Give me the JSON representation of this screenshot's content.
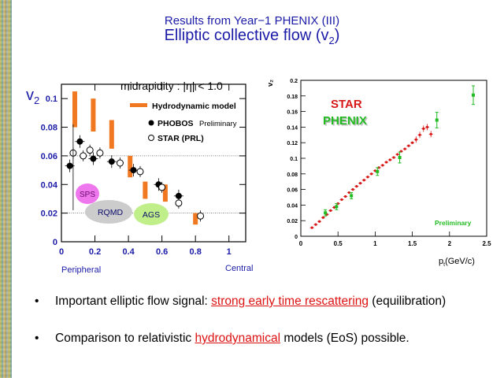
{
  "slide": {
    "title_line1": "Results from Year−1 PHENIX (III)",
    "title_line2_main": "Elliptic collective flow (v",
    "title_line2_sub": "2",
    "title_line2_end": ")"
  },
  "colors": {
    "title": "#1b1ba8",
    "hydro": "#f07820",
    "star": "#d81818",
    "phenix": "#22bb22",
    "highlight": "#dd1111"
  },
  "chart_data": [
    {
      "type": "scatter",
      "ylabel_main": "v",
      "ylabel_sub": "2",
      "xlim": [
        0,
        1.1
      ],
      "ylim": [
        0,
        0.11
      ],
      "x_ticks": [
        "0",
        "0.2",
        "0.4",
        "0.6",
        "0.8",
        "1"
      ],
      "y_ticks": [
        "0",
        "0.02",
        "0.04",
        "0.06",
        "0.08",
        "0.1"
      ],
      "header_text": "midrapidity : |η| < 1.0",
      "legend": {
        "hydro": "Hydrodynamic model",
        "phobos": "PHOBOS",
        "phobos_note": "Preliminary",
        "star": "STAR (PRL)"
      },
      "annotations": {
        "sps": "SPS",
        "rqmd": "RQMD",
        "ags": "AGS",
        "peripheral": "Peripheral",
        "central": "Central"
      },
      "series": [
        {
          "name": "Hydrodynamic model",
          "bars": [
            [
              0.08,
              0.08,
              0.105
            ],
            [
              0.19,
              0.077,
              0.1
            ],
            [
              0.3,
              0.065,
              0.085
            ],
            [
              0.41,
              0.045,
              0.06
            ],
            [
              0.5,
              0.03,
              0.042
            ],
            [
              0.62,
              0.028,
              0.04
            ],
            [
              0.8,
              0.012,
              0.02
            ]
          ]
        },
        {
          "name": "PHOBOS",
          "points": [
            [
              0.05,
              0.053
            ],
            [
              0.11,
              0.07
            ],
            [
              0.19,
              0.058
            ],
            [
              0.3,
              0.056
            ],
            [
              0.43,
              0.05
            ],
            [
              0.58,
              0.04
            ],
            [
              0.7,
              0.032
            ]
          ]
        },
        {
          "name": "STAR (PRL)",
          "points": [
            [
              0.07,
              0.062
            ],
            [
              0.13,
              0.06
            ],
            [
              0.17,
              0.064
            ],
            [
              0.23,
              0.062
            ],
            [
              0.35,
              0.055
            ],
            [
              0.47,
              0.049
            ],
            [
              0.6,
              0.038
            ],
            [
              0.7,
              0.027
            ],
            [
              0.83,
              0.018
            ]
          ]
        }
      ]
    },
    {
      "type": "scatter",
      "ylabel": "v₂",
      "xlabel_main": "p",
      "xlabel_sub": "t",
      "xlabel_end": "(GeV/c)",
      "xlim": [
        0,
        2.5
      ],
      "ylim": [
        0,
        0.2
      ],
      "x_ticks": [
        "0",
        "0.5",
        "1",
        "1.5",
        "2",
        "2.5"
      ],
      "y_ticks": [
        "0",
        "0.02",
        "0.04",
        "0.06",
        "0.08",
        "0.1",
        "0.12",
        "0.14",
        "0.16",
        "0.18",
        "0.2"
      ],
      "labels": {
        "star": "STAR",
        "phenix": "PHENIX",
        "preliminary": "Preliminary"
      },
      "series": [
        {
          "name": "STAR",
          "points": [
            [
              0.15,
              0.011
            ],
            [
              0.2,
              0.015
            ],
            [
              0.25,
              0.019
            ],
            [
              0.3,
              0.024
            ],
            [
              0.35,
              0.028
            ],
            [
              0.4,
              0.033
            ],
            [
              0.45,
              0.037
            ],
            [
              0.5,
              0.042
            ],
            [
              0.55,
              0.047
            ],
            [
              0.6,
              0.051
            ],
            [
              0.65,
              0.056
            ],
            [
              0.7,
              0.06
            ],
            [
              0.75,
              0.064
            ],
            [
              0.8,
              0.068
            ],
            [
              0.85,
              0.072
            ],
            [
              0.9,
              0.076
            ],
            [
              0.95,
              0.08
            ],
            [
              1.0,
              0.084
            ],
            [
              1.05,
              0.088
            ],
            [
              1.1,
              0.091
            ],
            [
              1.15,
              0.095
            ],
            [
              1.2,
              0.098
            ],
            [
              1.25,
              0.101
            ],
            [
              1.3,
              0.105
            ],
            [
              1.35,
              0.109
            ],
            [
              1.4,
              0.112
            ],
            [
              1.45,
              0.116
            ],
            [
              1.5,
              0.12
            ],
            [
              1.55,
              0.124
            ],
            [
              1.6,
              0.13
            ],
            [
              1.65,
              0.138
            ],
            [
              1.7,
              0.14
            ],
            [
              1.75,
              0.131
            ]
          ]
        },
        {
          "name": "PHENIX",
          "points": [
            [
              0.33,
              0.03
            ],
            [
              0.48,
              0.038
            ],
            [
              0.68,
              0.052
            ],
            [
              1.03,
              0.083
            ],
            [
              1.33,
              0.101
            ],
            [
              1.83,
              0.149
            ],
            [
              2.32,
              0.181
            ]
          ],
          "errors": [
            0.004,
            0.004,
            0.004,
            0.005,
            0.007,
            0.01,
            0.012
          ]
        }
      ]
    }
  ],
  "bullets": [
    {
      "pre": "Important elliptic flow signal: ",
      "highlight": "strong early time rescattering",
      "post": " (equilibration)"
    },
    {
      "pre": "Comparison to relativistic ",
      "highlight": "hydrodynamical",
      "post": " models (EoS) possible."
    }
  ]
}
